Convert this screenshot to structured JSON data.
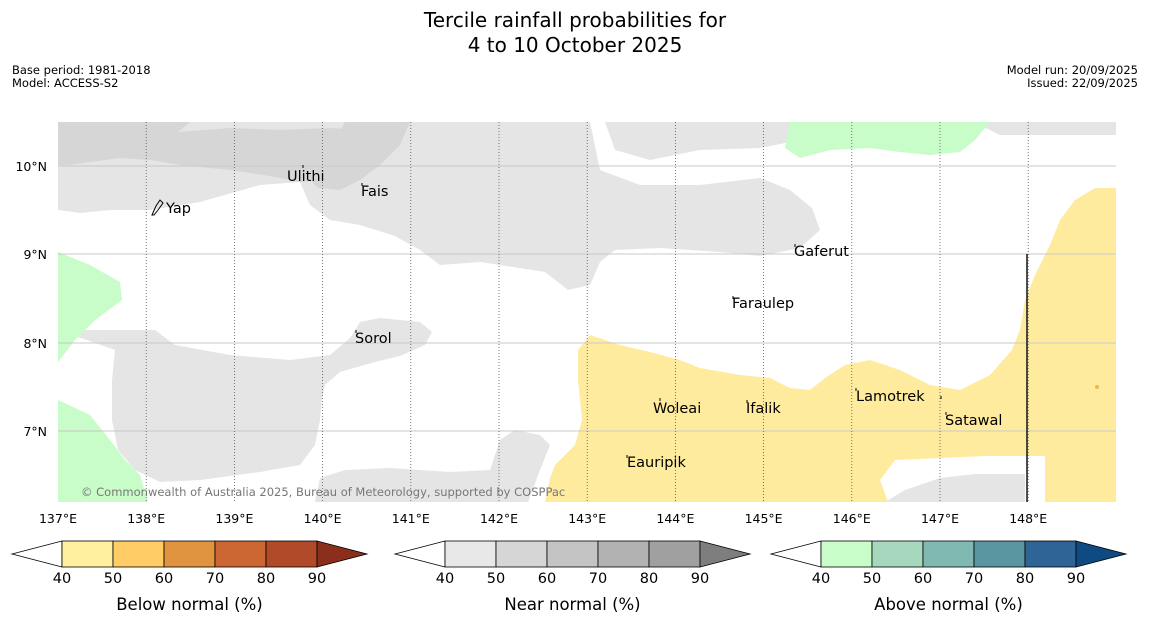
{
  "header": {
    "title_line1": "Tercile rainfall probabilities for",
    "title_line2": "4 to 10 October 2025",
    "base_period": "Base period: 1981-2018",
    "model": "Model: ACCESS-S2",
    "model_run": "Model run: 20/09/2025",
    "issued": "Issued: 22/09/2025"
  },
  "map": {
    "lon_labels": [
      "137°E",
      "138°E",
      "139°E",
      "140°E",
      "141°E",
      "142°E",
      "143°E",
      "144°E",
      "145°E",
      "146°E",
      "147°E",
      "148°E"
    ],
    "lat_labels": [
      "10°N",
      "9°N",
      "8°N",
      "7°N"
    ],
    "places": [
      "Ulithi",
      "Fais",
      "Yap",
      "Gaferut",
      "Faraulep",
      "Sorol",
      "Woleai",
      "Ifalik",
      "Lamotrek",
      "Satawal",
      "Eauripik"
    ],
    "copyright": "© Commonwealth of Australia 2025, Bureau of Meteorology, supported by COSPPac",
    "colors": {
      "near_normal": "#e5e5e5",
      "near_normal_dark": "#d6d6d6",
      "above_normal": "#c8fcc8",
      "below_normal": "#ffeb9e"
    }
  },
  "colorbars": [
    {
      "title": "Below normal (%)",
      "ticks": [
        "40",
        "50",
        "60",
        "70",
        "80",
        "90"
      ],
      "colors": [
        "#ffffff",
        "#fff0a0",
        "#ffcc66",
        "#e09440",
        "#cc6633",
        "#b04a28",
        "#8c2e1c"
      ]
    },
    {
      "title": "Near normal (%)",
      "ticks": [
        "40",
        "50",
        "60",
        "70",
        "80",
        "90"
      ],
      "colors": [
        "#ffffff",
        "#e8e8e8",
        "#d6d6d6",
        "#c4c4c4",
        "#b2b2b2",
        "#a0a0a0",
        "#7e7e7e"
      ]
    },
    {
      "title": "Above normal (%)",
      "ticks": [
        "40",
        "50",
        "60",
        "70",
        "80",
        "90"
      ],
      "colors": [
        "#ffffff",
        "#c8fcc8",
        "#a6d8be",
        "#80b8b2",
        "#5a96a2",
        "#2e6496",
        "#104a82"
      ]
    }
  ]
}
